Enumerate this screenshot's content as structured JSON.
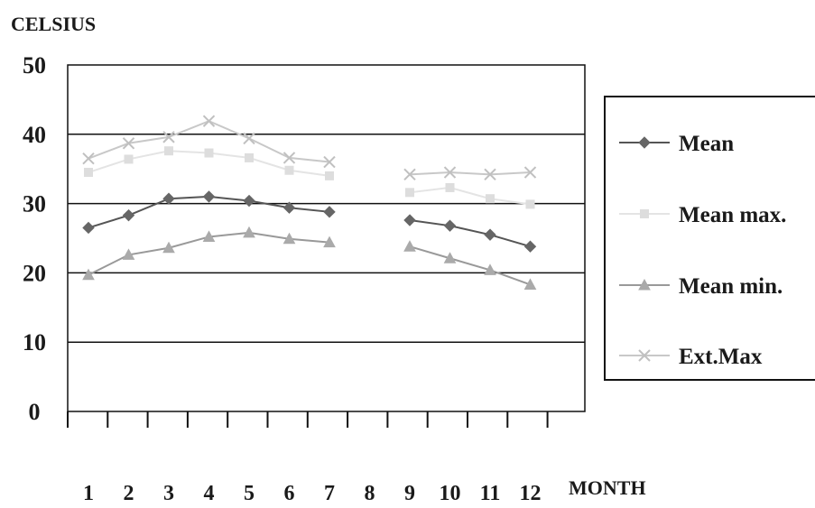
{
  "chart_data": {
    "type": "line",
    "ylabel": "CELSIUS",
    "xlabel": "MONTH",
    "categories": [
      "1",
      "2",
      "3",
      "4",
      "5",
      "6",
      "7",
      "8",
      "9",
      "10",
      "11",
      "12"
    ],
    "ylim": [
      0,
      50
    ],
    "yticks": [
      0,
      10,
      20,
      30,
      40,
      50
    ],
    "grid": true,
    "legend_position": "right",
    "series": [
      {
        "name": "Mean",
        "marker": "diamond",
        "color": "#555555",
        "marker_color": "#666666",
        "values": [
          26.5,
          28.3,
          30.7,
          31.0,
          30.4,
          29.4,
          28.8,
          null,
          27.6,
          26.8,
          25.5,
          23.8
        ]
      },
      {
        "name": "Mean max.",
        "marker": "square",
        "color": "#e4e4e4",
        "marker_color": "#dddddd",
        "values": [
          34.5,
          36.4,
          37.6,
          37.3,
          36.6,
          34.8,
          34.0,
          null,
          31.6,
          32.3,
          30.7,
          29.9
        ]
      },
      {
        "name": "Mean min.",
        "marker": "triangle",
        "color": "#999999",
        "marker_color": "#aaaaaa",
        "values": [
          19.7,
          22.6,
          23.6,
          25.2,
          25.8,
          24.9,
          24.4,
          null,
          23.8,
          22.1,
          20.4,
          18.3
        ]
      },
      {
        "name": "Ext.Max",
        "marker": "x",
        "color": "#c8c8c8",
        "marker_color": "#c0c0c0",
        "values": [
          36.5,
          38.7,
          39.6,
          41.9,
          39.4,
          36.6,
          36.0,
          null,
          34.2,
          34.5,
          34.2,
          34.5
        ]
      }
    ]
  }
}
